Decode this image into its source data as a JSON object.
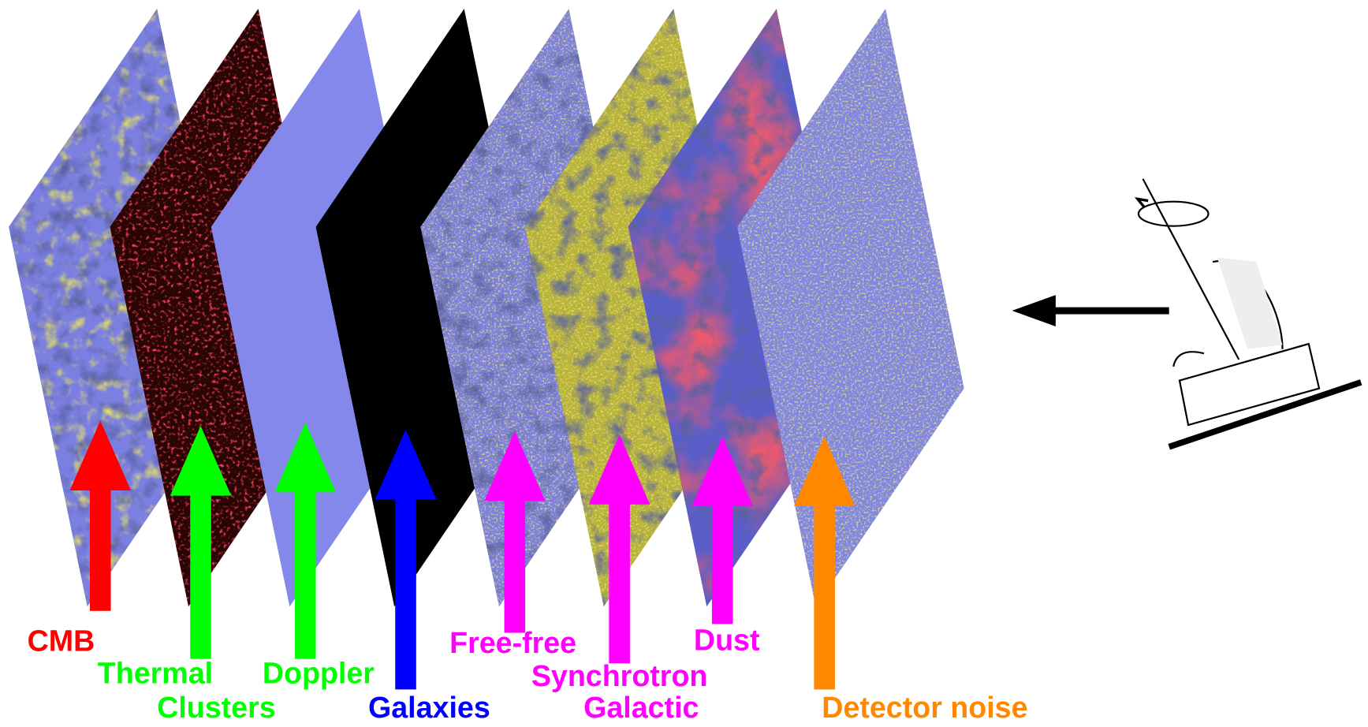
{
  "labels": [
    {
      "lines": [
        "CMB"
      ]
    },
    {
      "lines": [
        "Thermal",
        "Clusters"
      ]
    },
    {
      "lines": [
        "Doppler"
      ]
    },
    {
      "lines": [
        "Galaxies"
      ]
    },
    {
      "lines": [
        "Free-free"
      ]
    },
    {
      "lines": [
        "Synchrotron",
        "Galactic"
      ]
    },
    {
      "lines": [
        "Dust"
      ]
    },
    {
      "lines": [
        "Detector noise"
      ]
    }
  ]
}
